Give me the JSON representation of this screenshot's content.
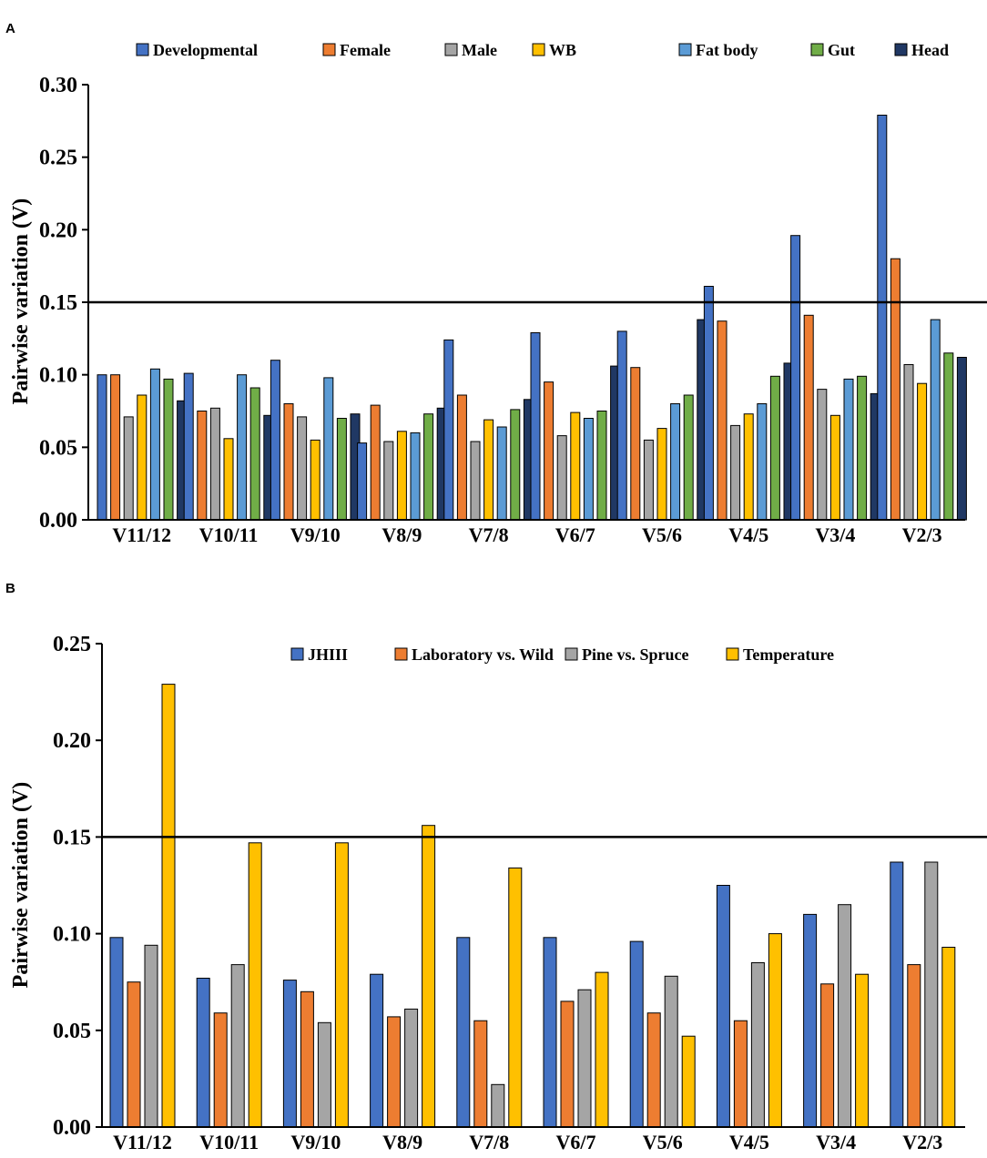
{
  "chart_data": [
    {
      "panel": "A",
      "type": "bar",
      "title": "",
      "xlabel": "",
      "ylabel": "Pairwise variation (V)",
      "ylim": [
        0,
        0.3
      ],
      "yticks": [
        "0.00",
        "0.05",
        "0.10",
        "0.15",
        "0.20",
        "0.25",
        "0.30"
      ],
      "threshold": 0.15,
      "categories": [
        "V11/12",
        "V10/11",
        "V9/10",
        "V8/9",
        "V7/8",
        "V6/7",
        "V5/6",
        "V4/5",
        "V3/4",
        "V2/3"
      ],
      "series": [
        {
          "name": "Developmental",
          "color": "#4472c4",
          "values": [
            0.1,
            0.101,
            0.11,
            0.053,
            0.124,
            0.129,
            0.13,
            0.161,
            0.196,
            0.279
          ]
        },
        {
          "name": "Female",
          "color": "#ed7d31",
          "values": [
            0.1,
            0.075,
            0.08,
            0.079,
            0.086,
            0.095,
            0.105,
            0.137,
            0.141,
            0.18
          ]
        },
        {
          "name": "Male",
          "color": "#a5a5a5",
          "values": [
            0.071,
            0.077,
            0.071,
            0.054,
            0.054,
            0.058,
            0.055,
            0.065,
            0.09,
            0.107
          ]
        },
        {
          "name": "WB",
          "color": "#ffc000",
          "values": [
            0.086,
            0.056,
            0.055,
            0.061,
            0.069,
            0.074,
            0.063,
            0.073,
            0.072,
            0.094
          ]
        },
        {
          "name": "Fat body",
          "color": "#5b9bd5",
          "values": [
            0.104,
            0.1,
            0.098,
            0.06,
            0.064,
            0.07,
            0.08,
            0.08,
            0.097,
            0.138
          ]
        },
        {
          "name": "Gut",
          "color": "#70ad47",
          "values": [
            0.097,
            0.091,
            0.07,
            0.073,
            0.076,
            0.075,
            0.086,
            0.099,
            0.099,
            0.115
          ]
        },
        {
          "name": "Head",
          "color": "#203864",
          "values": [
            0.082,
            0.072,
            0.073,
            0.077,
            0.083,
            0.106,
            0.138,
            0.108,
            0.087,
            0.112
          ]
        }
      ]
    },
    {
      "panel": "B",
      "type": "bar",
      "title": "",
      "xlabel": "",
      "ylabel": "Pairwise variation (V)",
      "ylim": [
        0,
        0.25
      ],
      "yticks": [
        "0.00",
        "0.05",
        "0.10",
        "0.15",
        "0.20",
        "0.25"
      ],
      "threshold": 0.15,
      "categories": [
        "V11/12",
        "V10/11",
        "V9/10",
        "V8/9",
        "V7/8",
        "V6/7",
        "V5/6",
        "V4/5",
        "V3/4",
        "V2/3"
      ],
      "series": [
        {
          "name": "JHIII",
          "color": "#4472c4",
          "values": [
            0.098,
            0.077,
            0.076,
            0.079,
            0.098,
            0.098,
            0.096,
            0.125,
            0.11,
            0.137
          ]
        },
        {
          "name": "Laboratory vs. Wild",
          "color": "#ed7d31",
          "values": [
            0.075,
            0.059,
            0.07,
            0.057,
            0.055,
            0.065,
            0.059,
            0.055,
            0.074,
            0.084
          ]
        },
        {
          "name": "Pine vs. Spruce",
          "color": "#a5a5a5",
          "values": [
            0.094,
            0.084,
            0.054,
            0.061,
            0.022,
            0.071,
            0.078,
            0.085,
            0.115,
            0.137
          ]
        },
        {
          "name": "Temperature",
          "color": "#ffc000",
          "values": [
            0.229,
            0.147,
            0.147,
            0.156,
            0.134,
            0.08,
            0.047,
            0.1,
            0.079,
            0.093
          ]
        }
      ]
    }
  ]
}
